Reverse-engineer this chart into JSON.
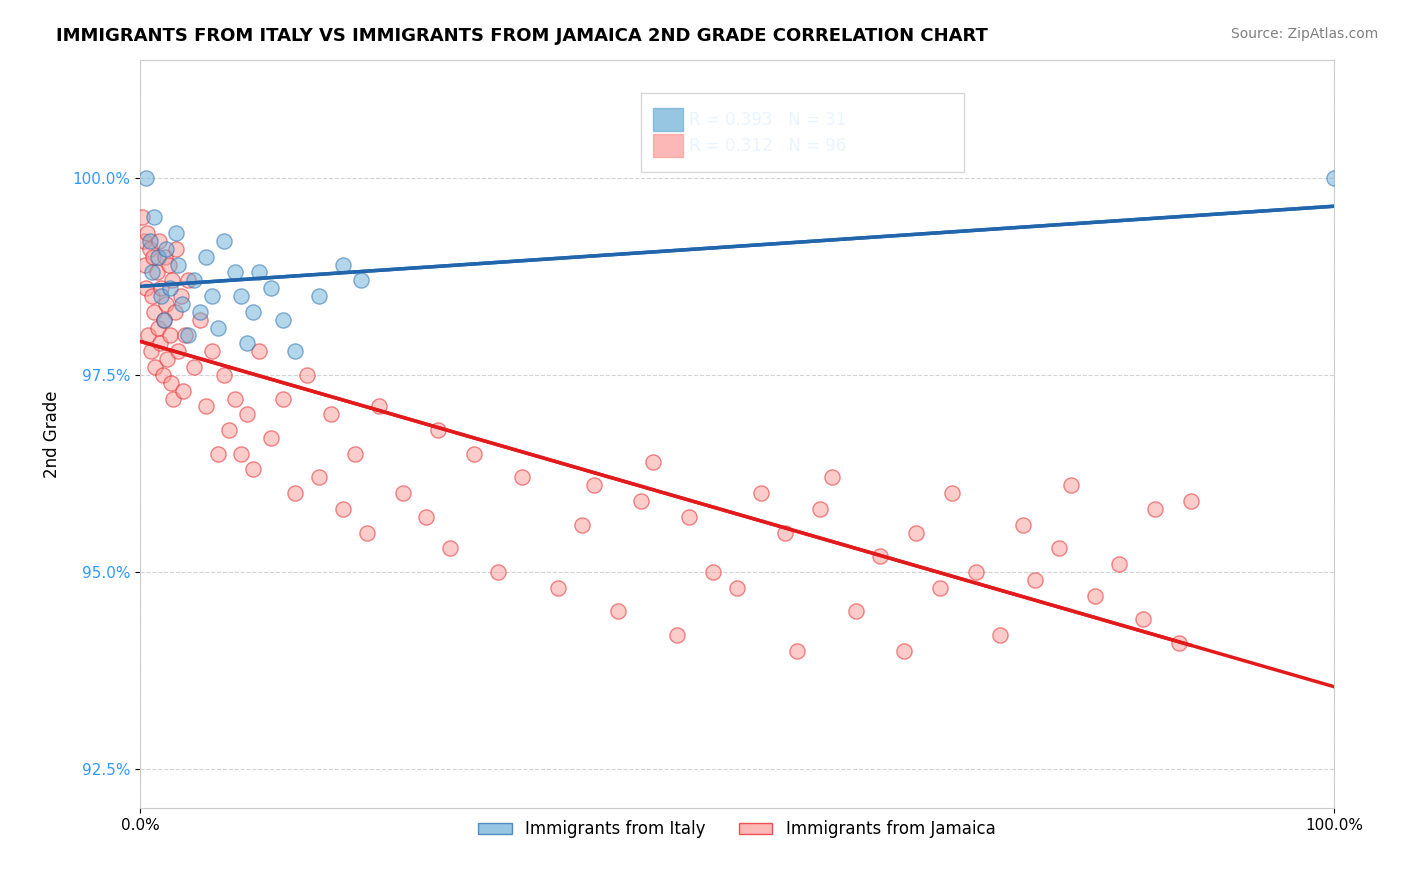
{
  "title": "IMMIGRANTS FROM ITALY VS IMMIGRANTS FROM JAMAICA 2ND GRADE CORRELATION CHART",
  "source_text": "Source: ZipAtlas.com",
  "xlabel": "",
  "ylabel": "2nd Grade",
  "xlim": [
    0,
    100
  ],
  "ylim": [
    92.0,
    101.5
  ],
  "ytick_labels": [
    "92.5%",
    "95.0%",
    "97.5%",
    "100.0%"
  ],
  "ytick_values": [
    92.5,
    95.0,
    97.5,
    100.0
  ],
  "xtick_labels": [
    "0.0%",
    "100.0%"
  ],
  "xtick_values": [
    0,
    100
  ],
  "legend_italy": "Immigrants from Italy",
  "legend_jamaica": "Immigrants from Jamaica",
  "color_italy": "#6baed6",
  "color_jamaica": "#fb9a99",
  "color_italy_line": "#2166ac",
  "color_jamaica_line": "#e31a1c",
  "R_italy": 0.393,
  "N_italy": 31,
  "R_jamaica": 0.312,
  "N_jamaica": 96,
  "italy_x": [
    0.5,
    0.8,
    1.0,
    1.2,
    1.5,
    1.8,
    2.0,
    2.2,
    2.5,
    3.0,
    3.2,
    3.5,
    4.0,
    4.5,
    5.0,
    5.5,
    6.0,
    6.5,
    7.0,
    8.0,
    8.5,
    9.0,
    9.5,
    10.0,
    11.0,
    12.0,
    13.0,
    15.0,
    17.0,
    18.5,
    100.0
  ],
  "italy_y": [
    100.0,
    99.2,
    98.8,
    99.5,
    99.0,
    98.5,
    98.2,
    99.1,
    98.6,
    99.3,
    98.9,
    98.4,
    98.0,
    98.7,
    98.3,
    99.0,
    98.5,
    98.1,
    99.2,
    98.8,
    98.5,
    97.9,
    98.3,
    98.8,
    98.6,
    98.2,
    97.8,
    98.5,
    98.9,
    98.7,
    100.0
  ],
  "jamaica_x": [
    0.2,
    0.3,
    0.4,
    0.5,
    0.6,
    0.7,
    0.8,
    0.9,
    1.0,
    1.1,
    1.2,
    1.3,
    1.4,
    1.5,
    1.6,
    1.7,
    1.8,
    1.9,
    2.0,
    2.1,
    2.2,
    2.3,
    2.4,
    2.5,
    2.6,
    2.7,
    2.8,
    2.9,
    3.0,
    3.2,
    3.4,
    3.6,
    3.8,
    4.0,
    4.5,
    5.0,
    5.5,
    6.0,
    6.5,
    7.0,
    7.5,
    8.0,
    8.5,
    9.0,
    9.5,
    10.0,
    11.0,
    12.0,
    13.0,
    14.0,
    15.0,
    16.0,
    17.0,
    18.0,
    19.0,
    20.0,
    22.0,
    24.0,
    25.0,
    26.0,
    28.0,
    30.0,
    32.0,
    35.0,
    37.0,
    38.0,
    40.0,
    42.0,
    43.0,
    45.0,
    46.0,
    48.0,
    50.0,
    52.0,
    54.0,
    55.0,
    57.0,
    58.0,
    60.0,
    62.0,
    64.0,
    65.0,
    67.0,
    68.0,
    70.0,
    72.0,
    74.0,
    75.0,
    77.0,
    78.0,
    80.0,
    82.0,
    84.0,
    85.0,
    87.0,
    88.0
  ],
  "jamaica_y": [
    99.5,
    99.2,
    98.9,
    98.6,
    99.3,
    98.0,
    99.1,
    97.8,
    98.5,
    99.0,
    98.3,
    97.6,
    98.8,
    98.1,
    99.2,
    97.9,
    98.6,
    97.5,
    98.2,
    99.0,
    98.4,
    97.7,
    98.9,
    98.0,
    97.4,
    98.7,
    97.2,
    98.3,
    99.1,
    97.8,
    98.5,
    97.3,
    98.0,
    98.7,
    97.6,
    98.2,
    97.1,
    97.8,
    96.5,
    97.5,
    96.8,
    97.2,
    96.5,
    97.0,
    96.3,
    97.8,
    96.7,
    97.2,
    96.0,
    97.5,
    96.2,
    97.0,
    95.8,
    96.5,
    95.5,
    97.1,
    96.0,
    95.7,
    96.8,
    95.3,
    96.5,
    95.0,
    96.2,
    94.8,
    95.6,
    96.1,
    94.5,
    95.9,
    96.4,
    94.2,
    95.7,
    95.0,
    94.8,
    96.0,
    95.5,
    94.0,
    95.8,
    96.2,
    94.5,
    95.2,
    94.0,
    95.5,
    94.8,
    96.0,
    95.0,
    94.2,
    95.6,
    94.9,
    95.3,
    96.1,
    94.7,
    95.1,
    94.4,
    95.8,
    94.1,
    95.9
  ]
}
